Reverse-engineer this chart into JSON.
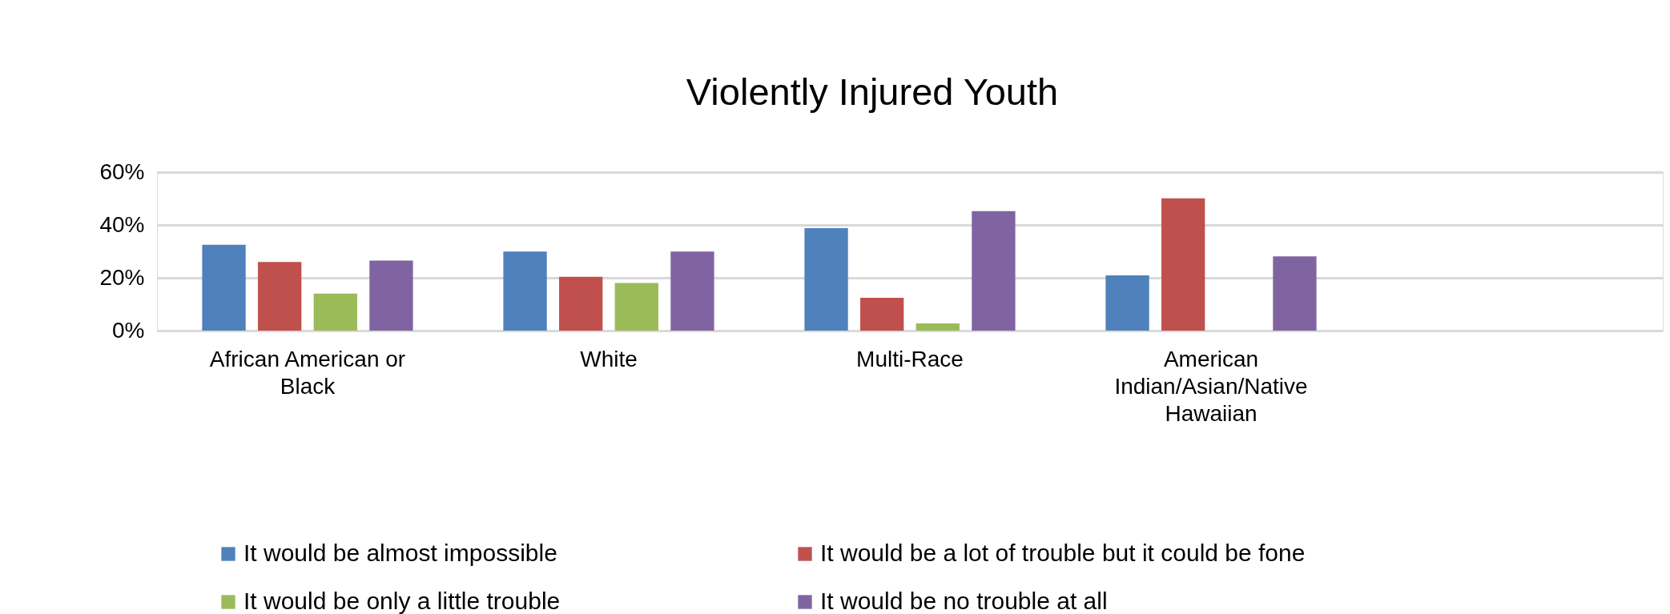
{
  "chart_data": {
    "type": "bar",
    "title": "Violently Injured Youth",
    "categories": [
      "African American or Black",
      "White",
      "Multi-Race",
      "American Indian/Asian/Native Hawaiian",
      null
    ],
    "series": [
      {
        "name": "It would be almost impossible",
        "color": "#4f81bd",
        "values": [
          32.5,
          29.9,
          38.8,
          20.9,
          null
        ]
      },
      {
        "name": "It would be a lot of trouble but it could be fone",
        "color": "#c0504d",
        "values": [
          26,
          20.4,
          12.4,
          50.1,
          null
        ]
      },
      {
        "name": "It would be only a little trouble",
        "color": "#9bbb59",
        "values": [
          14,
          18,
          2.7,
          null,
          null
        ]
      },
      {
        "name": "It would be no trouble at all",
        "color": "#8064a2",
        "values": [
          26.5,
          29.9,
          45.2,
          28.1,
          null
        ]
      }
    ],
    "ylim": [
      0,
      60
    ],
    "yticks": [
      {
        "value": 0,
        "label": "0%"
      },
      {
        "value": 20,
        "label": "20%"
      },
      {
        "value": 40,
        "label": "40%"
      },
      {
        "value": 60,
        "label": "60%"
      }
    ],
    "grid": "y",
    "legend": "bottom"
  }
}
